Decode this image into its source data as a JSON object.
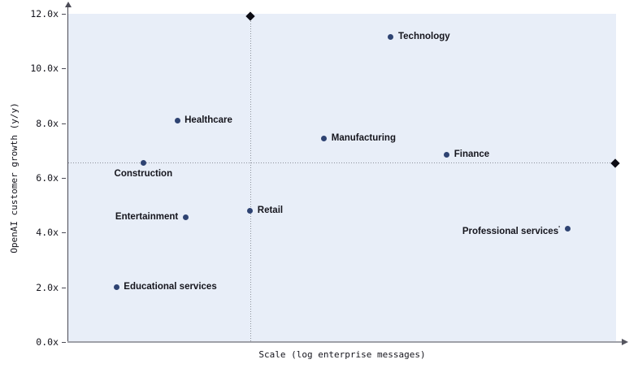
{
  "chart_data": {
    "type": "scatter",
    "title": "",
    "xlabel": "Scale (log enterprise messages)",
    "ylabel": "OpenAI customer growth (y/y)",
    "x_axis": {
      "scale": "log",
      "tick_labels_visible": false,
      "range_relative": [
        0,
        100
      ]
    },
    "y_axis": {
      "min": 0,
      "max": 12,
      "ticks": [
        {
          "value": 0,
          "label": "0.0x"
        },
        {
          "value": 2,
          "label": "2.0x"
        },
        {
          "value": 4,
          "label": "4.0x"
        },
        {
          "value": 6,
          "label": "6.0x"
        },
        {
          "value": 8,
          "label": "8.0x"
        },
        {
          "value": 10,
          "label": "10.0x"
        },
        {
          "value": 12,
          "label": "12.0x"
        }
      ]
    },
    "points": [
      {
        "name": "Educational services",
        "x": 8.8,
        "y": 2.0,
        "label_side": "right"
      },
      {
        "name": "Construction",
        "x": 13.7,
        "y": 6.55,
        "label_side": "below"
      },
      {
        "name": "Healthcare",
        "x": 19.9,
        "y": 8.1,
        "label_side": "right"
      },
      {
        "name": "Entertainment",
        "x": 21.4,
        "y": 4.55,
        "label_side": "left"
      },
      {
        "name": "Retail",
        "x": 33.2,
        "y": 4.8,
        "label_side": "right"
      },
      {
        "name": "Manufacturing",
        "x": 46.7,
        "y": 7.45,
        "label_side": "right"
      },
      {
        "name": "Technology",
        "x": 58.9,
        "y": 11.15,
        "label_side": "right"
      },
      {
        "name": "Finance",
        "x": 69.1,
        "y": 6.85,
        "label_side": "right"
      },
      {
        "name": "Professional services",
        "x": 91.1,
        "y": 4.15,
        "label_side": "left",
        "footnote_marker": "'"
      }
    ],
    "reference_lines": [
      {
        "orientation": "vertical",
        "x": 33.2,
        "style": "dotted",
        "end_marker": "diamond",
        "marker_at": "top"
      },
      {
        "orientation": "horizontal",
        "y": 6.55,
        "style": "dotted",
        "end_marker": "diamond",
        "marker_at": "right"
      }
    ],
    "legend": null,
    "grid": false,
    "colors": {
      "plot_background": "#e8eef8",
      "point": "#2e4372",
      "diamond_marker": "#0c0c14",
      "reference_line": "#8d929b",
      "x_axis_line": "#9fa1a8",
      "y_axis_line": "#4a4a55",
      "text": "#15151d"
    }
  }
}
